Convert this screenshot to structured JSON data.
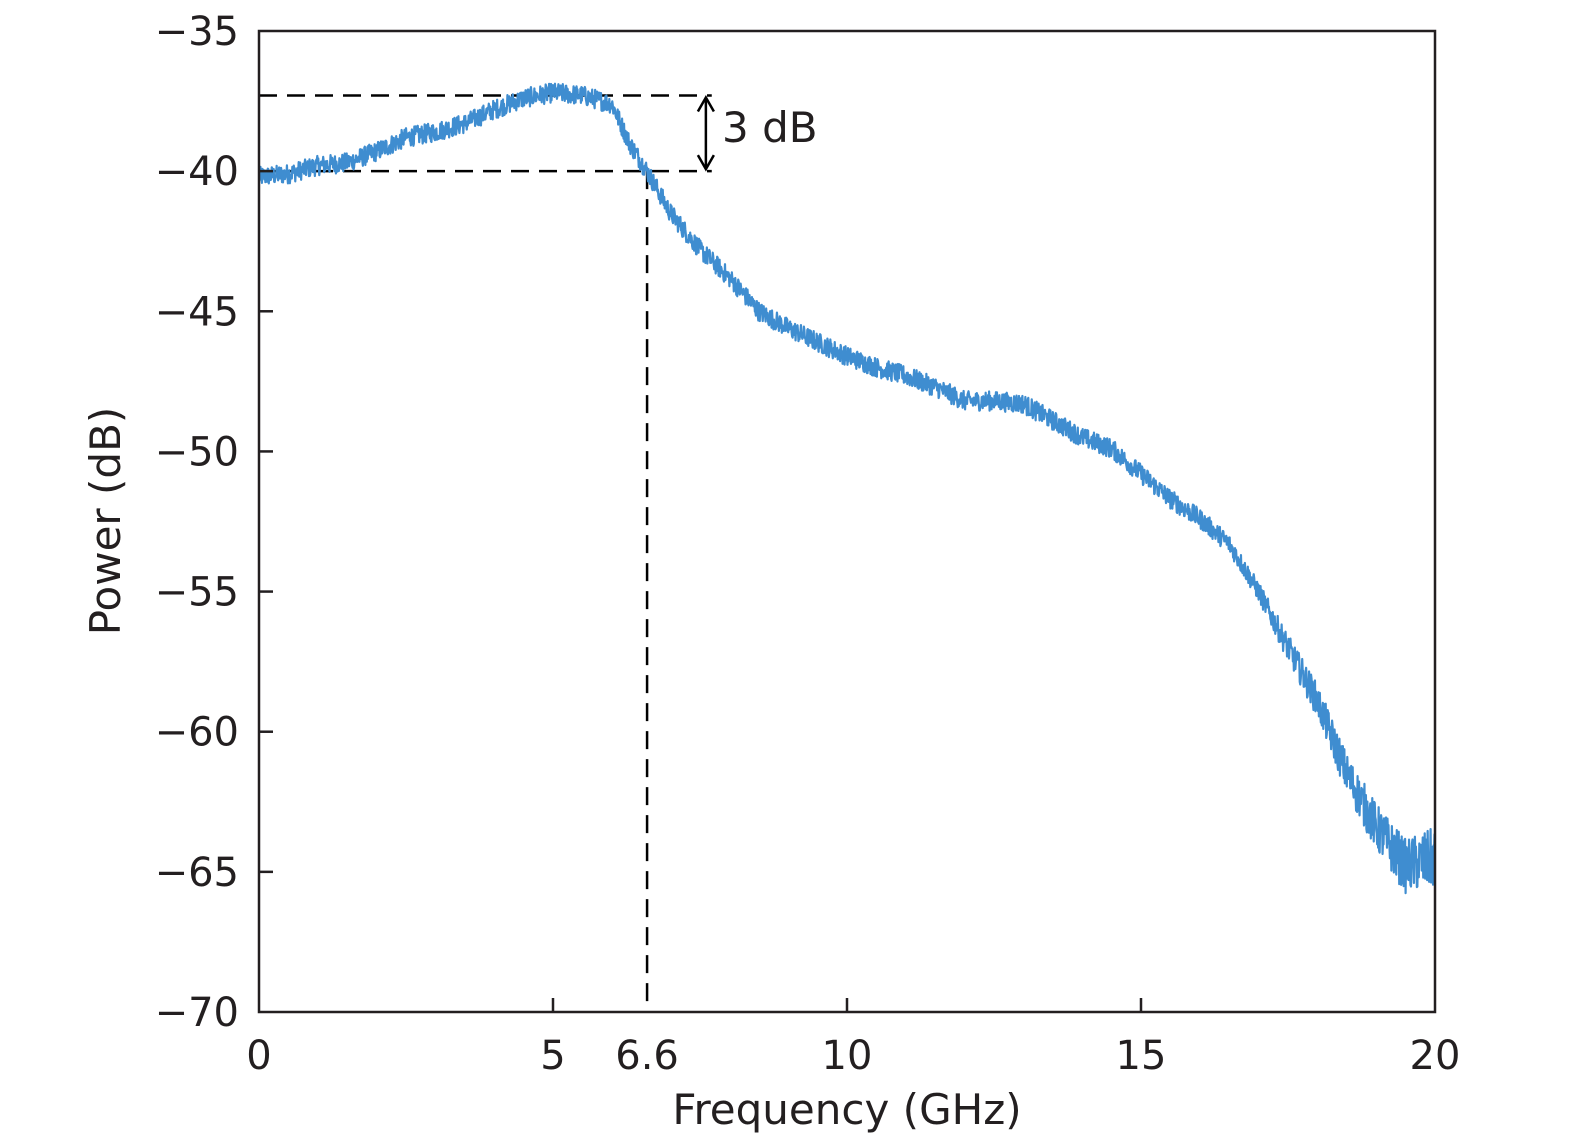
{
  "chart_data": {
    "type": "line",
    "xlabel": "Frequency (GHz)",
    "ylabel": "Power (dB)",
    "xlim": [
      0,
      20
    ],
    "ylim": [
      -70,
      -35
    ],
    "x_ticks": [
      {
        "value": 0,
        "label": "0"
      },
      {
        "value": 5,
        "label": "5"
      },
      {
        "value": 6.6,
        "label": "6.6"
      },
      {
        "value": 10,
        "label": "10"
      },
      {
        "value": 15,
        "label": "15"
      },
      {
        "value": 20,
        "label": "20"
      }
    ],
    "y_ticks": [
      {
        "value": -35,
        "label": "−35"
      },
      {
        "value": -40,
        "label": "−40"
      },
      {
        "value": -45,
        "label": "−45"
      },
      {
        "value": -50,
        "label": "−50"
      },
      {
        "value": -55,
        "label": "−55"
      },
      {
        "value": -60,
        "label": "−60"
      },
      {
        "value": -65,
        "label": "−65"
      },
      {
        "value": -70,
        "label": "−70"
      }
    ],
    "grid": false,
    "legend": "none",
    "series_color": "#3f8dd0",
    "series": [
      {
        "x": [
          0,
          0.5,
          1,
          1.5,
          2,
          2.5,
          3,
          3.5,
          4,
          4.5,
          5,
          5.5,
          6,
          6.3,
          6.6,
          7,
          7.5,
          8,
          8.5,
          9,
          9.5,
          10,
          10.5,
          11,
          11.5,
          12,
          12.5,
          13,
          13.5,
          14,
          14.5,
          15,
          15.5,
          16,
          16.5,
          17,
          17.5,
          18,
          18.5,
          19,
          19.5,
          20
        ],
        "y": [
          -40.2,
          -40.1,
          -39.8,
          -39.7,
          -39.3,
          -38.8,
          -38.6,
          -38.3,
          -37.8,
          -37.4,
          -37.2,
          -37.3,
          -37.6,
          -39.0,
          -40.0,
          -41.5,
          -42.8,
          -43.8,
          -45.0,
          -45.6,
          -46.1,
          -46.6,
          -47.0,
          -47.3,
          -47.7,
          -48.2,
          -48.2,
          -48.3,
          -48.9,
          -49.5,
          -49.9,
          -50.8,
          -51.7,
          -52.4,
          -53.3,
          -55.0,
          -57.0,
          -58.9,
          -61.5,
          -63.4,
          -64.8,
          -64.5
        ]
      }
    ],
    "annotations": {
      "delta_label": "3 dB",
      "ref_upper_y": -37.3,
      "ref_lower_y": -40,
      "cutoff_x": 6.6,
      "line_end_x": 7.7,
      "arrow_x": 7.6,
      "line_color": "#000000"
    }
  }
}
